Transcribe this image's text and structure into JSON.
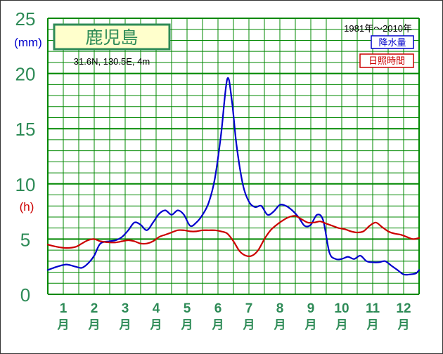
{
  "chart_data": {
    "type": "line",
    "title": "鹿児島",
    "location": "31.6N,  130.5E,  4m",
    "period": "1981年〜2010年",
    "y_ticks": [
      "0",
      "5",
      "10",
      "15",
      "20",
      "25"
    ],
    "y_unit_precip": "(mm)",
    "y_unit_sun": "(h)",
    "ylim": [
      0,
      25
    ],
    "months": [
      "1",
      "2",
      "3",
      "4",
      "5",
      "6",
      "7",
      "8",
      "9",
      "10",
      "11",
      "12"
    ],
    "month_unit": "月",
    "series": [
      {
        "name": "降水量",
        "color": "#0000cc",
        "x": [
          0.0,
          0.3,
          0.6,
          0.9,
          1.1,
          1.3,
          1.5,
          1.7,
          2.0,
          2.2,
          2.4,
          2.6,
          2.8,
          3.0,
          3.2,
          3.4,
          3.6,
          3.8,
          4.0,
          4.2,
          4.4,
          4.6,
          4.8,
          5.0,
          5.2,
          5.4,
          5.6,
          5.8,
          5.95,
          6.1,
          6.3,
          6.5,
          6.7,
          6.9,
          7.1,
          7.3,
          7.5,
          7.7,
          7.9,
          8.1,
          8.3,
          8.5,
          8.7,
          8.9,
          9.1,
          9.3,
          9.5,
          9.7,
          9.9,
          10.1,
          10.3,
          10.5,
          10.7,
          10.9,
          11.1,
          11.3,
          11.5,
          11.7,
          11.9,
          12.0
        ],
        "values": [
          2.2,
          2.5,
          2.7,
          2.5,
          2.4,
          2.8,
          3.5,
          4.6,
          4.8,
          4.9,
          5.2,
          5.8,
          6.5,
          6.3,
          5.8,
          6.5,
          7.3,
          7.6,
          7.2,
          7.6,
          7.2,
          6.2,
          6.5,
          7.2,
          8.3,
          10.5,
          14.5,
          19.5,
          17.5,
          13.5,
          10.0,
          8.4,
          7.9,
          8.0,
          7.2,
          7.5,
          8.1,
          8.0,
          7.6,
          7.0,
          6.2,
          6.3,
          7.2,
          6.7,
          3.8,
          3.2,
          3.2,
          3.4,
          3.2,
          3.5,
          3.0,
          2.9,
          2.9,
          3.0,
          2.6,
          2.2,
          1.8,
          1.8,
          1.9,
          2.2
        ]
      },
      {
        "name": "日照時間",
        "color": "#cc0000",
        "x": [
          0.0,
          0.3,
          0.6,
          0.9,
          1.1,
          1.3,
          1.5,
          1.7,
          2.0,
          2.2,
          2.4,
          2.6,
          2.8,
          3.0,
          3.2,
          3.4,
          3.6,
          3.8,
          4.0,
          4.2,
          4.4,
          4.6,
          4.8,
          5.0,
          5.2,
          5.4,
          5.6,
          5.8,
          6.0,
          6.2,
          6.4,
          6.6,
          6.8,
          7.0,
          7.2,
          7.4,
          7.6,
          7.8,
          8.0,
          8.2,
          8.4,
          8.6,
          8.8,
          9.0,
          9.2,
          9.4,
          9.6,
          9.8,
          10.0,
          10.2,
          10.4,
          10.6,
          10.8,
          11.0,
          11.2,
          11.4,
          11.6,
          11.8,
          12.0
        ],
        "values": [
          4.5,
          4.3,
          4.2,
          4.3,
          4.6,
          4.9,
          5.0,
          4.8,
          4.7,
          4.7,
          4.8,
          4.9,
          4.8,
          4.6,
          4.6,
          4.8,
          5.2,
          5.4,
          5.6,
          5.8,
          5.8,
          5.7,
          5.7,
          5.8,
          5.8,
          5.8,
          5.7,
          5.5,
          4.8,
          3.9,
          3.5,
          3.5,
          4.0,
          5.0,
          5.8,
          6.3,
          6.7,
          7.0,
          7.1,
          6.8,
          6.5,
          6.5,
          6.6,
          6.4,
          6.2,
          6.0,
          5.9,
          5.7,
          5.6,
          5.7,
          6.2,
          6.5,
          6.1,
          5.7,
          5.5,
          5.4,
          5.2,
          5.0,
          5.1
        ]
      }
    ]
  },
  "colors": {
    "axis_text": "#2e8b57",
    "grid": "#008800",
    "title_box_bg": "#ffffcc",
    "title_box_border": "#2e8b57",
    "precip_unit": "#0000cc",
    "sun_unit": "#cc0000"
  }
}
